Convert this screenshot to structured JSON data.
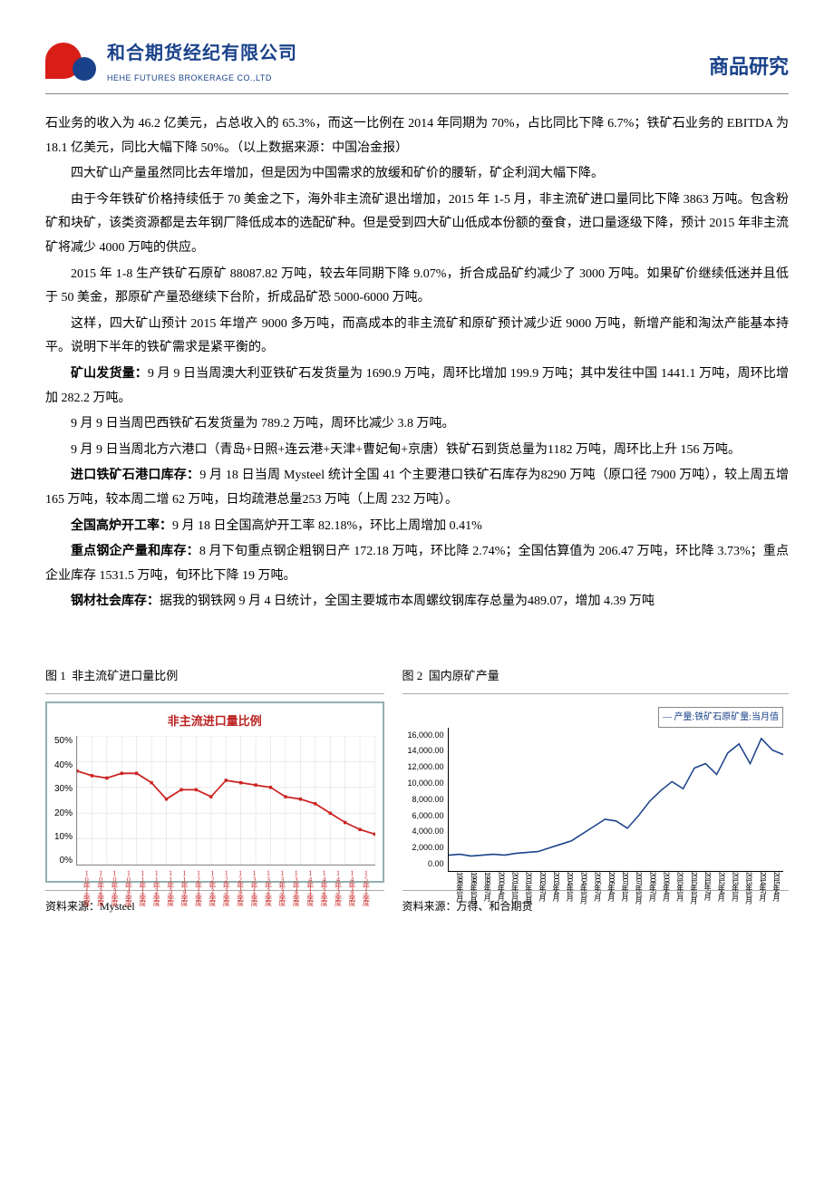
{
  "header": {
    "logo_cn": "和合期货经纪有限公司",
    "logo_en": "HEHE FUTURES BROKERAGE CO.,LTD",
    "doc_type": "商品研究"
  },
  "paragraphs": {
    "p1": "石业务的收入为 46.2 亿美元，占总收入的 65.3%，而这一比例在 2014 年同期为 70%，占比同比下降 6.7%；铁矿石业务的 EBITDA 为 18.1 亿美元，同比大幅下降 50%。（以上数据来源：中国冶金报）",
    "p2": "四大矿山产量虽然同比去年增加，但是因为中国需求的放缓和矿价的腰斩，矿企利润大幅下降。",
    "p3": "由于今年铁矿价格持续低于 70 美金之下，海外非主流矿退出增加，2015 年 1-5 月，非主流矿进口量同比下降 3863 万吨。包含粉矿和块矿，该类资源都是去年钢厂降低成本的选配矿种。但是受到四大矿山低成本份额的蚕食，进口量逐级下降，预计 2015 年非主流矿将减少 4000 万吨的供应。",
    "p4": "2015 年 1-8 生产铁矿石原矿 88087.82 万吨，较去年同期下降 9.07%，折合成品矿约减少了 3000 万吨。如果矿价继续低迷并且低于 50 美金，那原矿产量恐继续下台阶，折成品矿恐 5000-6000 万吨。",
    "p5": "这样，四大矿山预计 2015 年增产 9000 多万吨，而高成本的非主流矿和原矿预计减少近 9000 万吨，新增产能和淘汰产能基本持平。说明下半年的铁矿需求是紧平衡的。",
    "p6_label": "矿山发货量：",
    "p6": "9 月 9 日当周澳大利亚铁矿石发货量为 1690.9 万吨，周环比增加 199.9 万吨；其中发往中国 1441.1 万吨，周环比增加 282.2 万吨。",
    "p7": "9 月 9 日当周巴西铁矿石发货量为 789.2 万吨，周环比减少 3.8 万吨。",
    "p8": "9 月 9 日当周北方六港口（青岛+日照+连云港+天津+曹妃甸+京唐）铁矿石到货总量为1182 万吨，周环比上升 156 万吨。",
    "p9_label": "进口铁矿石港口库存：",
    "p9": "9 月 18 日当周 Mysteel 统计全国 41 个主要港口铁矿石库存为8290 万吨（原口径 7900 万吨），较上周五增 165 万吨，较本周二增 62 万吨，日均疏港总量253 万吨（上周 232 万吨）。",
    "p10_label": "全国高炉开工率：",
    "p10": "9 月 18 日全国高炉开工率 82.18%，环比上周增加 0.41%",
    "p11_label": "重点钢企产量和库存：",
    "p11": "8 月下旬重点钢企粗钢日产 172.18 万吨，环比降 2.74%；全国估算值为 206.47 万吨，环比降 3.73%；重点企业库存 1531.5 万吨，旬环比下降 19 万吨。",
    "p12_label": "钢材社会库存：",
    "p12": "据我的钢铁网 9 月 4 日统计，全国主要城市本周螺纹钢库存总量为489.07，增加 4.39 万吨"
  },
  "chart1": {
    "title_prefix": "图 1",
    "title": "非主流矿进口量比例",
    "legend": "非主流进口量比例",
    "source": "资料来源：Mysteel",
    "y_ticks": [
      "50%",
      "40%",
      "30%",
      "20%",
      "10%",
      "0%"
    ],
    "x_labels": [
      "10年1季度",
      "10年2季度",
      "10年3季度",
      "10年4季度",
      "11年1季度",
      "11年2季度",
      "11年3季度",
      "11年4季度",
      "12年1季度",
      "12年2季度",
      "12年3季度",
      "12年4季度",
      "13年1季度",
      "13年2季度",
      "13年3季度",
      "13年4季度",
      "14年1季度",
      "14年2季度",
      "14年3季度",
      "14年4季度",
      "15年1季度"
    ],
    "values": [
      40,
      38,
      37,
      39,
      39,
      35,
      28,
      32,
      32,
      29,
      36,
      35,
      34,
      33,
      29,
      28,
      26,
      22,
      18,
      15,
      13
    ],
    "line_color": "#cc2222",
    "grid_color": "#dddddd",
    "ymax": 55
  },
  "chart2": {
    "title_prefix": "图 2",
    "title": "国内原矿产量",
    "legend": "产量:铁矿石原矿量:当月值",
    "source": "资料来源：万得、和合期货",
    "y_ticks": [
      "16,000.00",
      "14,000.00",
      "12,000.00",
      "10,000.00",
      "8,000.00",
      "6,000.00",
      "4,000.00",
      "2,000.00",
      "0.00"
    ],
    "x_labels": [
      "1998年1月",
      "1998年10月",
      "1999年7月",
      "2000年4月",
      "2001年1月",
      "2001年10月",
      "2002年7月",
      "2003年4月",
      "2004年1月",
      "2004年10月",
      "2005年7月",
      "2006年4月",
      "2007年1月",
      "2007年10月",
      "2008年7月",
      "2009年4月",
      "2010年1月",
      "2010年10月",
      "2011年7月",
      "2012年4月",
      "2013年1月",
      "2013年10月",
      "2014年7月",
      "2015年4月"
    ],
    "values": [
      1800,
      1900,
      1700,
      1800,
      1900,
      1800,
      2000,
      2100,
      2200,
      2600,
      3000,
      3400,
      4200,
      5000,
      5800,
      5600,
      4800,
      6200,
      7800,
      9000,
      10000,
      9200,
      11500,
      12000,
      10800,
      13200,
      14200,
      12000,
      14800,
      13500,
      13000
    ],
    "line_color": "#1a428a",
    "ymax": 16000
  }
}
